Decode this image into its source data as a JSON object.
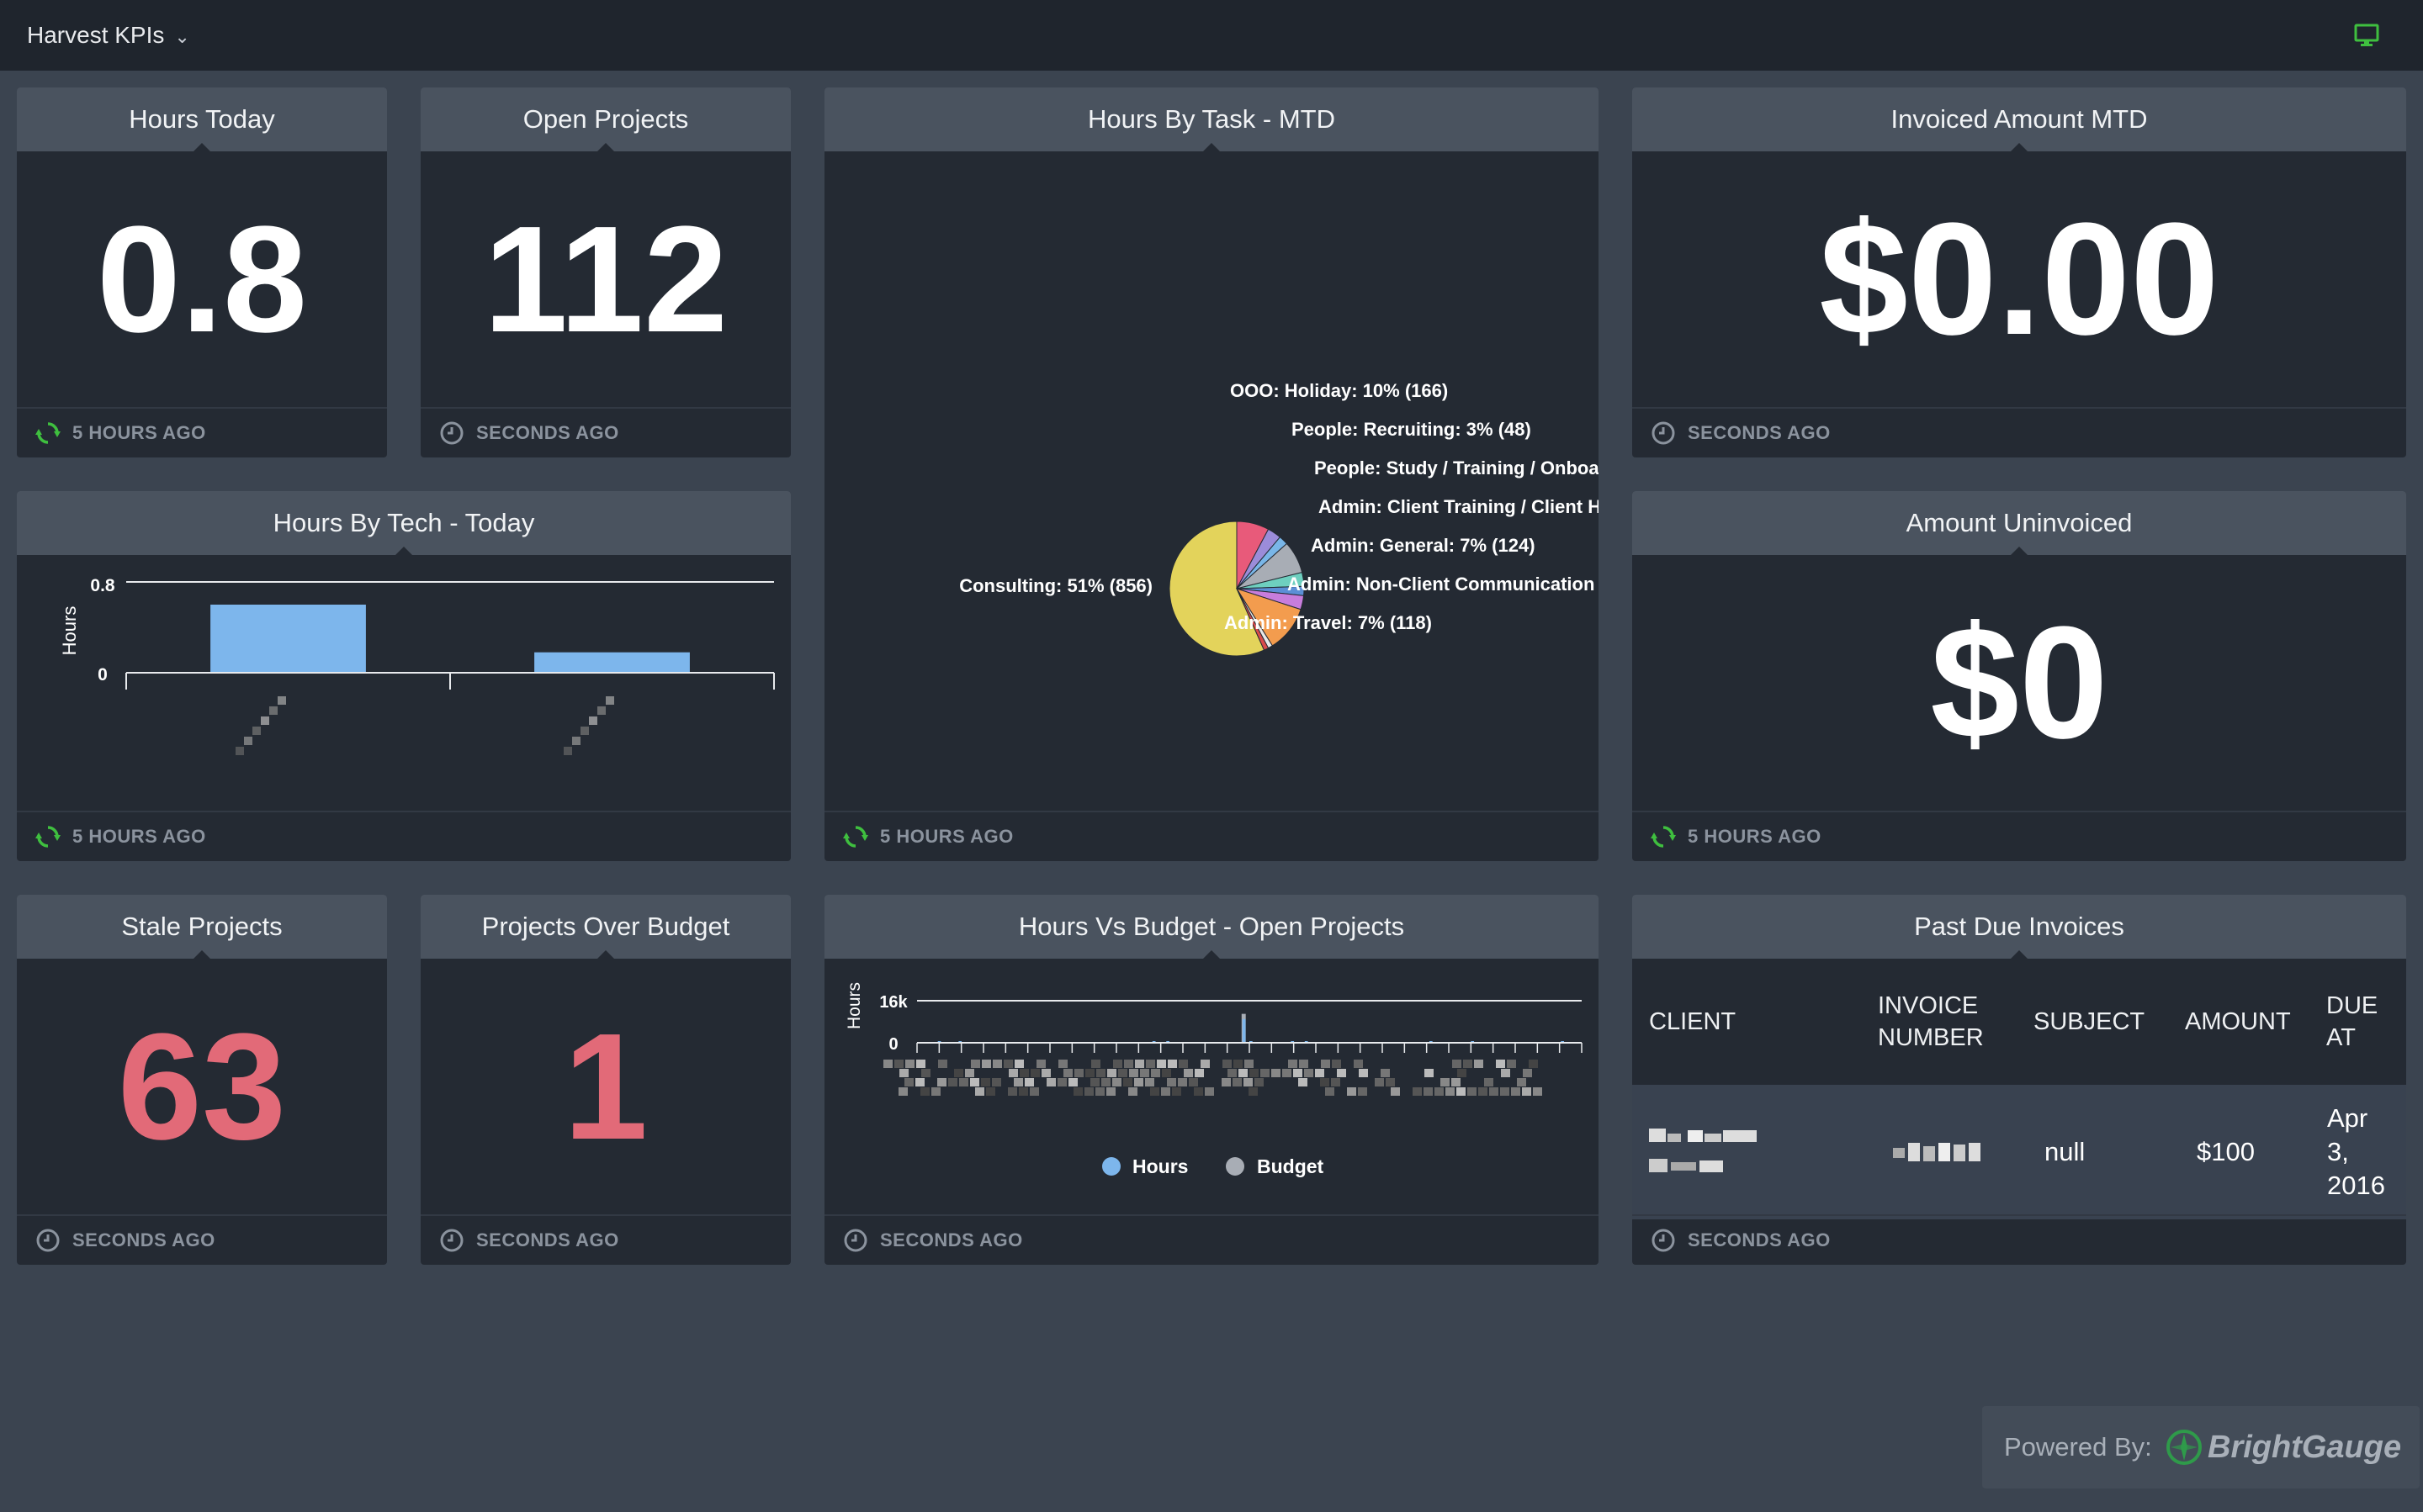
{
  "header": {
    "dashboard_title": "Harvest KPIs",
    "monitor_icon": "monitor-icon",
    "accent_color": "#3fbf3f"
  },
  "widgets": {
    "hours_today": {
      "title": "Hours Today",
      "value": "0.8",
      "updated": "5 HOURS AGO"
    },
    "open_projects": {
      "title": "Open Projects",
      "value": "112",
      "updated": "SECONDS AGO"
    },
    "hours_by_task": {
      "title": "Hours By Task - MTD",
      "updated": "5 HOURS AGO"
    },
    "invoiced_amount": {
      "title": "Invoiced Amount MTD",
      "value": "$0.00",
      "updated": "SECONDS AGO"
    },
    "hours_by_tech": {
      "title": "Hours By Tech - Today",
      "updated": "5 HOURS AGO"
    },
    "amount_uninvoiced": {
      "title": "Amount Uninvoiced",
      "value": "$0",
      "updated": "5 HOURS AGO"
    },
    "stale_projects": {
      "title": "Stale Projects",
      "value": "63",
      "updated": "SECONDS AGO"
    },
    "projects_over_budget": {
      "title": "Projects Over Budget",
      "value": "1",
      "updated": "SECONDS AGO"
    },
    "hours_vs_budget": {
      "title": "Hours Vs Budget - Open Projects",
      "updated": "SECONDS AGO"
    },
    "past_due_invoices": {
      "title": "Past Due Invoices",
      "updated": "SECONDS AGO",
      "columns": [
        "CLIENT",
        "INVOICE NUMBER",
        "SUBJECT",
        "AMOUNT",
        "DUE AT"
      ],
      "rows": [
        {
          "client": "",
          "invoice_number": "",
          "subject": "null",
          "amount": "$100",
          "due_at": "Apr 3, 2016"
        }
      ]
    }
  },
  "chart_data": [
    {
      "type": "pie",
      "labels": [
        "Consulting: 51% (856)",
        "OOO: Holiday: 10% (166)",
        "People: Recruiting: 3% (48)",
        "People: Study / Training / Onboard",
        "Admin: Client Training / Client Ha",
        "Admin: General: 7% (124)",
        "Admin: Non-Client Communication / (",
        "Admin: Travel: 7% (118)"
      ],
      "slices": [
        {
          "value": 51,
          "color": "#e3d35b"
        },
        {
          "value": 7,
          "color": "#e85a7a"
        },
        {
          "value": 3,
          "color": "#9b8cd9"
        },
        {
          "value": 2,
          "color": "#79b6e8"
        },
        {
          "value": 7,
          "color": "#a8adb5"
        },
        {
          "value": 3,
          "color": "#6ecfbf"
        },
        {
          "value": 2,
          "color": "#5c8fd6"
        },
        {
          "value": 3,
          "color": "#c77ddc"
        },
        {
          "value": 10,
          "color": "#f39c4e"
        },
        {
          "value": 1,
          "color": "#e8e8e8"
        },
        {
          "value": 1,
          "color": "#d94b4b"
        }
      ]
    },
    {
      "type": "bar",
      "categories": [
        "",
        ""
      ],
      "values": [
        0.6,
        0.18
      ],
      "ylabel": "Hours",
      "ylim": [
        0,
        0.8
      ],
      "yticks": [
        "0",
        "0.8"
      ],
      "color": "#7db6ec"
    },
    {
      "type": "bar",
      "ylabel": "Hours",
      "yticks": [
        "0",
        "16k"
      ],
      "ylim": [
        0,
        16000
      ],
      "series": [
        {
          "name": "Hours",
          "color": "#7db6ec"
        },
        {
          "name": "Budget",
          "color": "#a8adb5"
        }
      ],
      "values_hours": [
        0,
        0,
        0,
        200,
        0,
        0,
        300,
        0,
        0,
        0,
        0,
        0,
        0,
        0,
        0,
        0,
        0,
        0,
        0,
        0,
        0,
        0,
        0,
        0,
        0,
        0,
        0,
        0,
        0,
        0,
        0,
        0,
        0,
        0,
        250,
        0,
        200,
        0,
        0,
        0,
        0,
        0,
        0,
        0,
        0,
        0,
        0,
        9000,
        300,
        0,
        0,
        0,
        0,
        0,
        200,
        0,
        200,
        0,
        0,
        0,
        0,
        0,
        0,
        0,
        0,
        0,
        0,
        0,
        0,
        0,
        0,
        0,
        0,
        0,
        200,
        0,
        0,
        0,
        0,
        0,
        200,
        0,
        0,
        0,
        0,
        0,
        0,
        0,
        0,
        0,
        0,
        0,
        0,
        200,
        0,
        0
      ],
      "values_budget": [
        0,
        0,
        0,
        0,
        0,
        0,
        0,
        0,
        0,
        0,
        0,
        0,
        0,
        0,
        0,
        0,
        0,
        0,
        0,
        0,
        0,
        0,
        0,
        0,
        0,
        0,
        0,
        0,
        0,
        0,
        0,
        0,
        0,
        0,
        0,
        0,
        0,
        0,
        0,
        0,
        0,
        0,
        0,
        0,
        0,
        0,
        0,
        11000,
        0,
        0,
        0,
        0,
        0,
        0,
        0,
        0,
        0,
        0,
        0,
        0,
        0,
        0,
        0,
        0,
        0,
        0,
        0,
        0,
        0,
        0,
        0,
        0,
        0,
        0,
        0,
        0,
        0,
        0,
        0,
        0,
        0,
        0,
        0,
        0,
        0,
        0,
        0,
        0,
        0,
        0,
        0,
        0,
        0,
        0,
        0,
        0
      ]
    }
  ],
  "footer": {
    "powered_label": "Powered By:",
    "brand": "BrightGauge"
  }
}
